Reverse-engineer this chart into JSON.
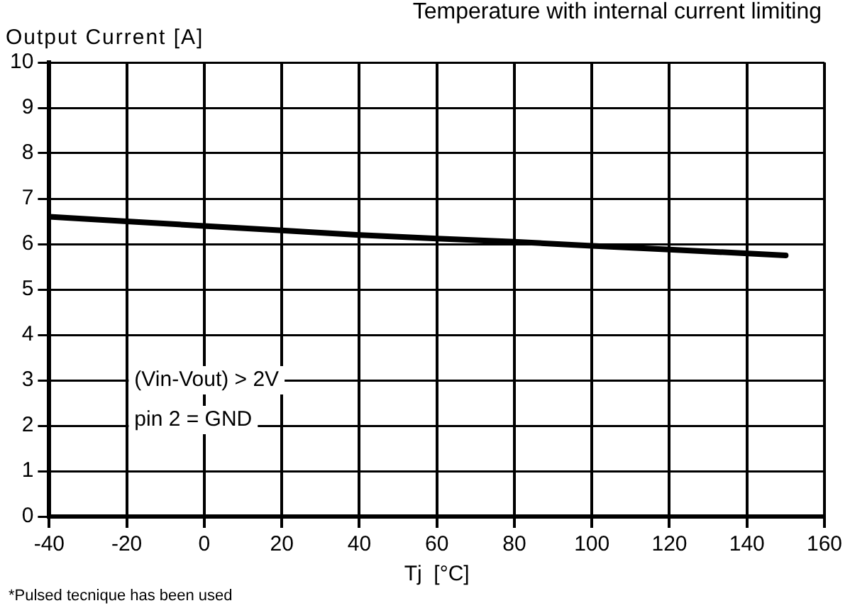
{
  "chart_data": {
    "type": "line",
    "title": "Temperature with internal current limiting",
    "ylabel": "Output Current  [A]",
    "xlabel": "Tj  [°C]",
    "x": [
      -40,
      -20,
      0,
      20,
      40,
      60,
      80,
      100,
      120,
      150
    ],
    "series": [
      {
        "color": "#000000",
        "values": [
          6.6,
          6.5,
          6.4,
          6.3,
          6.2,
          6.12,
          6.05,
          5.96,
          5.88,
          5.75
        ]
      }
    ],
    "xlim": [
      -40,
      160
    ],
    "xticks": [
      -40,
      -20,
      0,
      20,
      40,
      60,
      80,
      100,
      120,
      140,
      160
    ],
    "ylim": [
      0,
      10
    ],
    "yticks": [
      0,
      1,
      2,
      3,
      4,
      5,
      6,
      7,
      8,
      9,
      10
    ],
    "grid": true,
    "legend": false,
    "marker": "none",
    "line_style": "solid",
    "annotations": [
      "(Vin-Vout) > 2V",
      "pin 2 = GND",
      "*Pulsed tecnique has been used"
    ]
  }
}
